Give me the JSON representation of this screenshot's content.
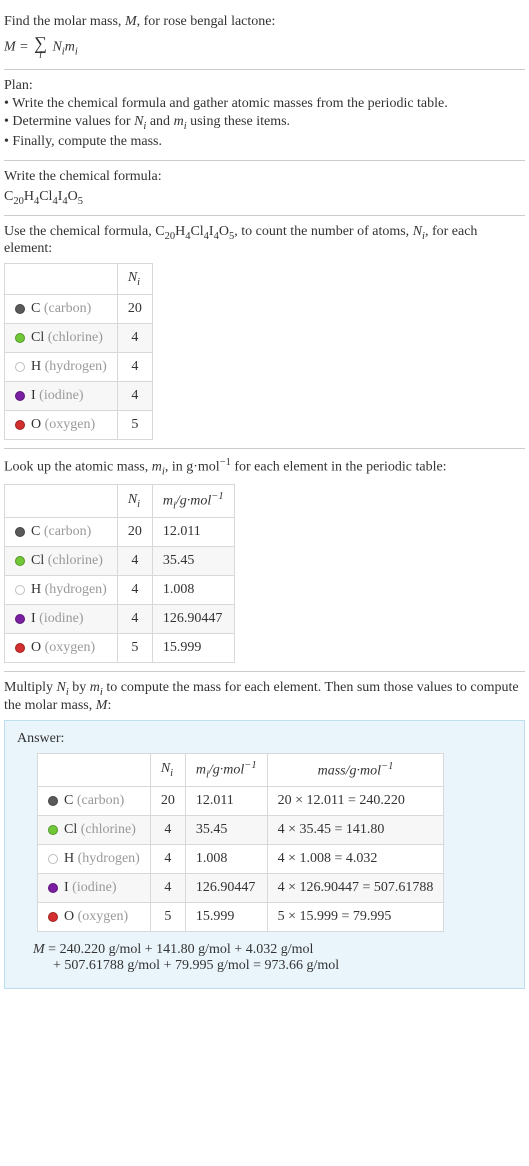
{
  "intro": {
    "line1_a": "Find the molar mass, ",
    "line1_b": ", for rose bengal lactone:",
    "M": "M",
    "formula_lhs": "M = ",
    "sigma": "∑",
    "sigma_sub": "i",
    "formula_rhs_N": "N",
    "formula_rhs_i": "i",
    "formula_rhs_m": "m"
  },
  "plan": {
    "heading": "Plan:",
    "items": [
      {
        "a": "• Write the chemical formula and gather atomic masses from the periodic table."
      },
      {
        "a": "• Determine values for ",
        "N": "N",
        "i": "i",
        "mid": " and ",
        "m": "m",
        "b": " using these items."
      },
      {
        "a": "• Finally, compute the mass."
      }
    ]
  },
  "chem_formula": {
    "heading": "Write the chemical formula:",
    "parts": [
      "C",
      "20",
      "H",
      "4",
      "Cl",
      "4",
      "I",
      "4",
      "O",
      "5"
    ]
  },
  "count_section": {
    "text_a": "Use the chemical formula, ",
    "text_b": ", to count the number of atoms, ",
    "N": "N",
    "i": "i",
    "text_c": ", for each element:",
    "header_Ni": "N",
    "header_i": "i",
    "rows": [
      {
        "color": "#5a5a5a",
        "sym": "C",
        "name": "(carbon)",
        "n": "20"
      },
      {
        "color": "#71c837",
        "sym": "Cl",
        "name": "(chlorine)",
        "n": "4"
      },
      {
        "color": "#ffffff",
        "sym": "H",
        "name": "(hydrogen)",
        "n": "4"
      },
      {
        "color": "#7b1fa2",
        "sym": "I",
        "name": "(iodine)",
        "n": "4"
      },
      {
        "color": "#d32f2f",
        "sym": "O",
        "name": "(oxygen)",
        "n": "5"
      }
    ]
  },
  "mass_section": {
    "text_a": "Look up the atomic mass, ",
    "m": "m",
    "i": "i",
    "text_b": ", in g·mol",
    "neg1": "−1",
    "text_c": " for each element in the periodic table:",
    "header_Ni_N": "N",
    "header_Ni_i": "i",
    "header_mi_m": "m",
    "header_mi_i": "i",
    "header_unit_a": "/g·mol",
    "header_unit_sup": "−1",
    "rows": [
      {
        "color": "#5a5a5a",
        "sym": "C",
        "name": "(carbon)",
        "n": "20",
        "m": "12.011"
      },
      {
        "color": "#71c837",
        "sym": "Cl",
        "name": "(chlorine)",
        "n": "4",
        "m": "35.45"
      },
      {
        "color": "#ffffff",
        "sym": "H",
        "name": "(hydrogen)",
        "n": "4",
        "m": "1.008"
      },
      {
        "color": "#7b1fa2",
        "sym": "I",
        "name": "(iodine)",
        "n": "4",
        "m": "126.90447"
      },
      {
        "color": "#d32f2f",
        "sym": "O",
        "name": "(oxygen)",
        "n": "5",
        "m": "15.999"
      }
    ]
  },
  "multiply_section": {
    "text_a": "Multiply ",
    "N": "N",
    "i": "i",
    "text_b": " by ",
    "m": "m",
    "text_c": " to compute the mass for each element. Then sum those values to compute the molar mass, ",
    "M": "M",
    "text_d": ":"
  },
  "answer": {
    "label": "Answer:",
    "header_Ni_N": "N",
    "header_Ni_i": "i",
    "header_mi_m": "m",
    "header_mi_i": "i",
    "header_unit_a": "/g·mol",
    "header_unit_sup": "−1",
    "header_mass_a": "mass/g·mol",
    "header_mass_sup": "−1",
    "rows": [
      {
        "color": "#5a5a5a",
        "sym": "C",
        "name": "(carbon)",
        "n": "20",
        "m": "12.011",
        "mass": "20 × 12.011 = 240.220"
      },
      {
        "color": "#71c837",
        "sym": "Cl",
        "name": "(chlorine)",
        "n": "4",
        "m": "35.45",
        "mass": "4 × 35.45 = 141.80"
      },
      {
        "color": "#ffffff",
        "sym": "H",
        "name": "(hydrogen)",
        "n": "4",
        "m": "1.008",
        "mass": "4 × 1.008 = 4.032"
      },
      {
        "color": "#7b1fa2",
        "sym": "I",
        "name": "(iodine)",
        "n": "4",
        "m": "126.90447",
        "mass": "4 × 126.90447 = 507.61788"
      },
      {
        "color": "#d32f2f",
        "sym": "O",
        "name": "(oxygen)",
        "n": "5",
        "m": "15.999",
        "mass": "5 × 15.999 = 79.995"
      }
    ],
    "eq_line1_a": "M",
    "eq_line1_b": " = 240.220 g/mol + 141.80 g/mol + 4.032 g/mol",
    "eq_line2": "+ 507.61788 g/mol + 79.995 g/mol = 973.66 g/mol"
  }
}
